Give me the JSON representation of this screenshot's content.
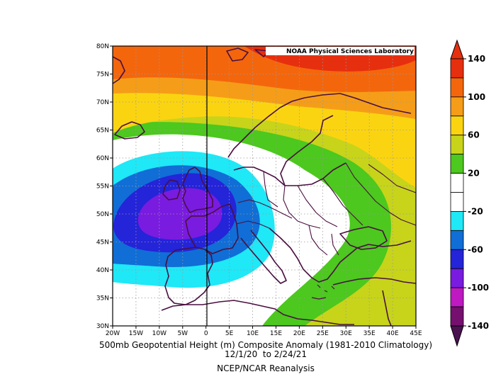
{
  "credit": "NOAA Physical Sciences Laboratory",
  "caption": {
    "title": "500mb Geopotential Height (m) Composite Anomaly (1981-2010 Climatology)",
    "dates": "12/1/20  to 2/24/21",
    "source": "NCEP/NCAR Reanalysis"
  },
  "axes": {
    "lon_labels": [
      "20W",
      "15W",
      "10W",
      "5W",
      "0",
      "5E",
      "10E",
      "15E",
      "20E",
      "25E",
      "30E",
      "35E",
      "40E",
      "45E"
    ],
    "lat_labels": [
      "30N",
      "35N",
      "40N",
      "45N",
      "50N",
      "55N",
      "60N",
      "65N",
      "70N",
      "75N",
      "80N"
    ]
  },
  "colorbar": {
    "labels": [
      "140",
      "100",
      "60",
      "20",
      "-20",
      "-60",
      "-100",
      "-140"
    ],
    "colors": [
      "#e62f0f",
      "#f4660c",
      "#f59d18",
      "#fbd411",
      "#c7d41a",
      "#4cc81e",
      "#ffffff",
      "#ffffff",
      "#1fe8f7",
      "#106ed6",
      "#2424d9",
      "#7a1be0",
      "#bf19c2",
      "#75106e"
    ]
  },
  "palette": {
    "red": "#e62f0f",
    "orange_red": "#f4660c",
    "orange": "#f59d18",
    "yellow": "#fbd411",
    "yellow_green": "#c7d41a",
    "green": "#4cc81e",
    "white": "#ffffff",
    "cyan": "#1fe8f7",
    "blue": "#106ed6",
    "dark_blue": "#2424d9",
    "purple": "#7a1be0",
    "coast": "#4a0f40"
  }
}
